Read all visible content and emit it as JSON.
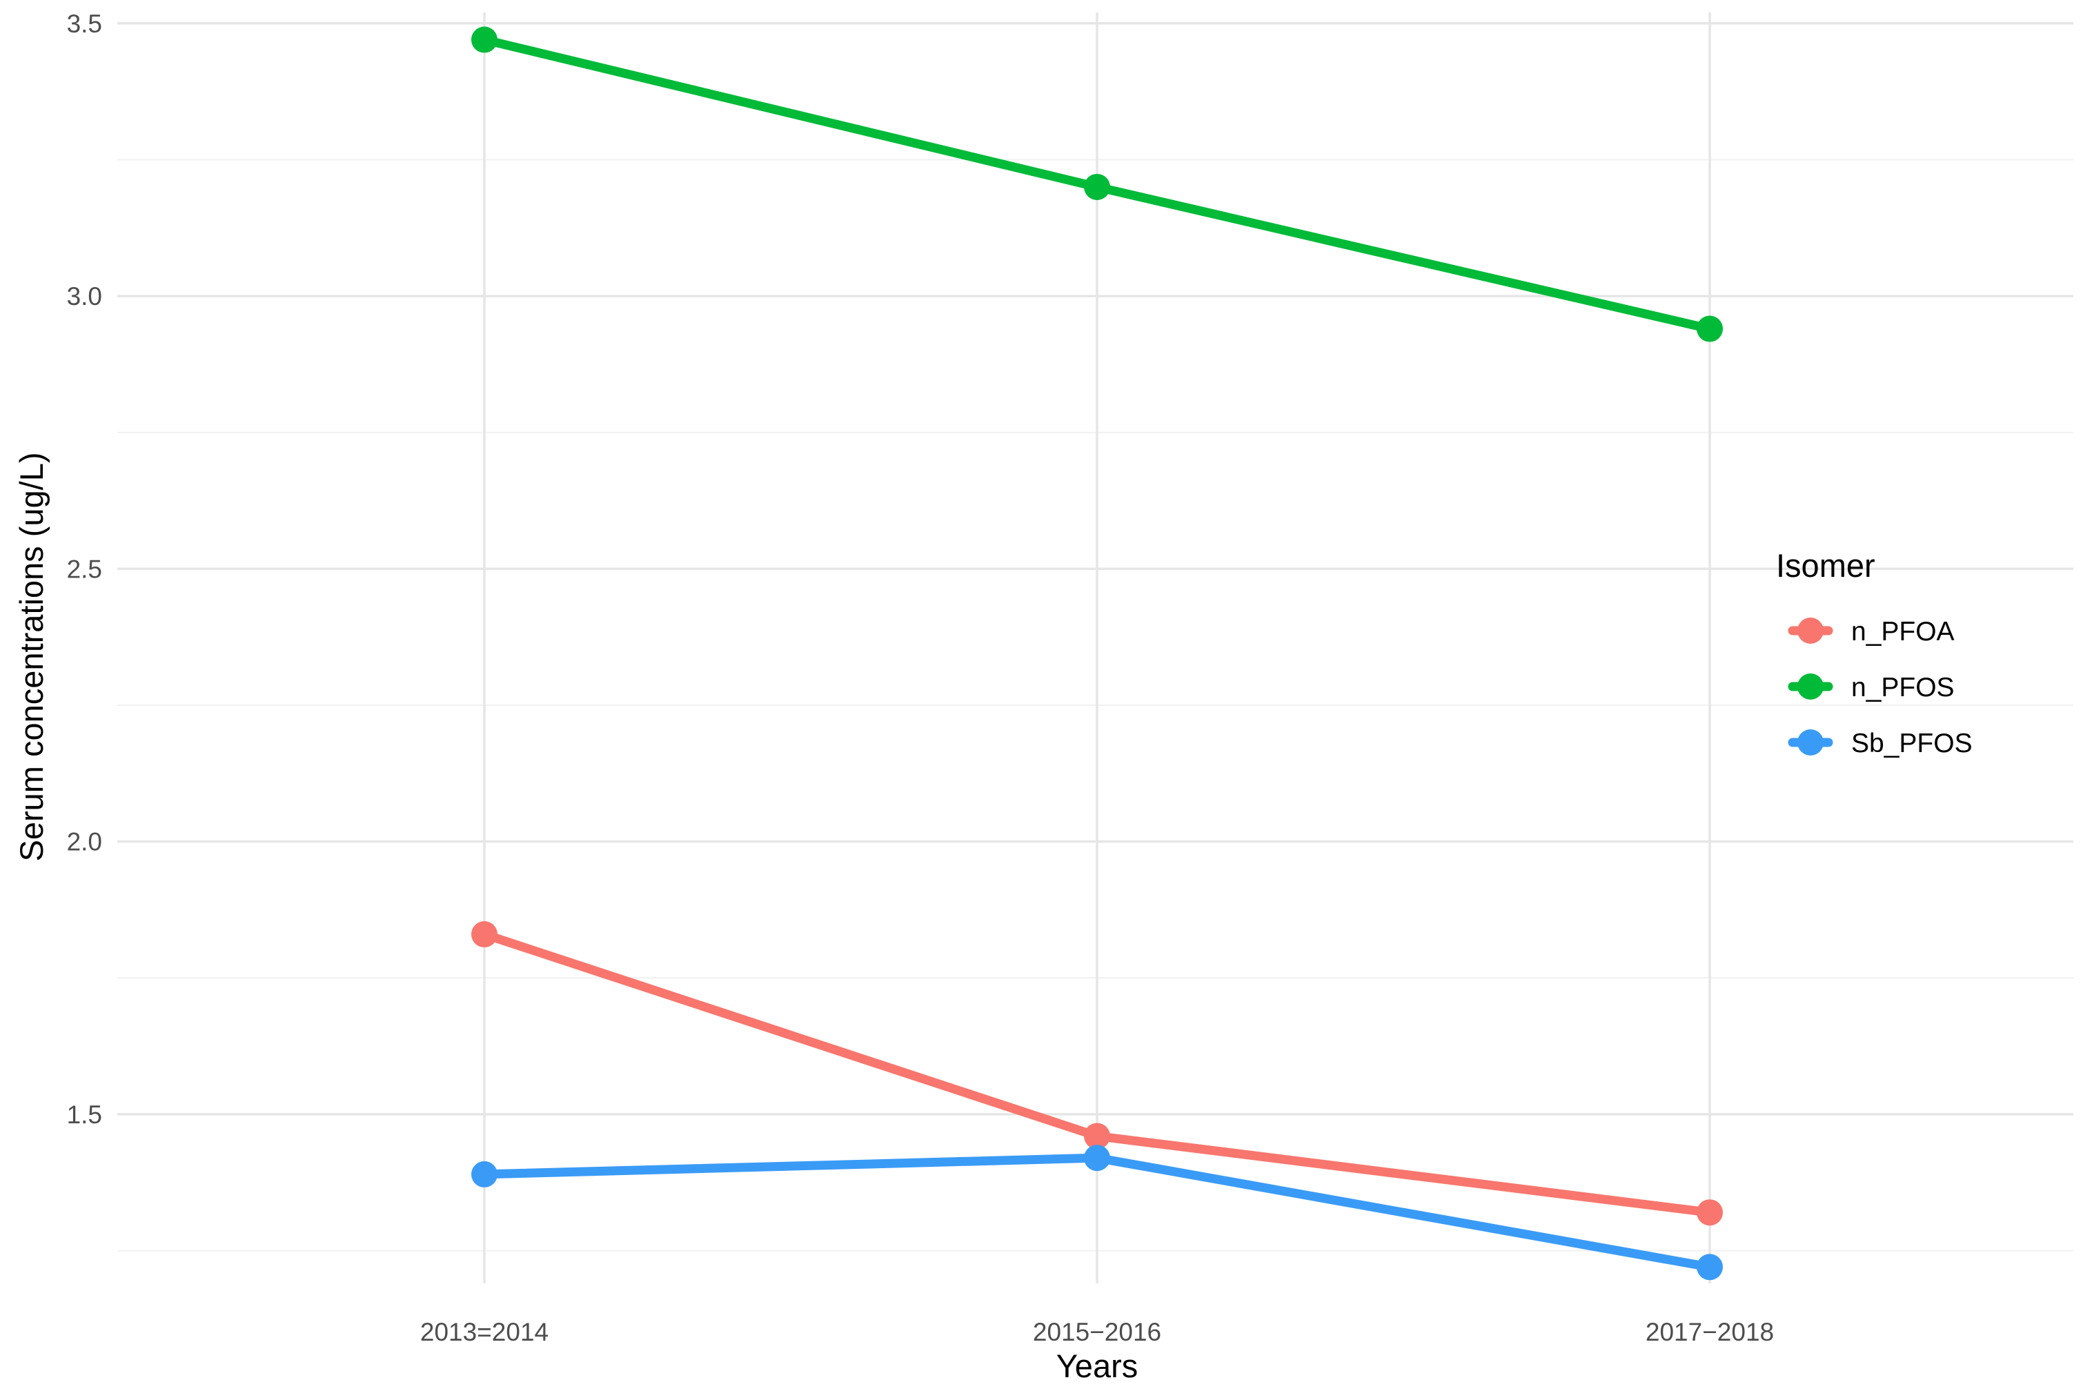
{
  "chart_data": {
    "type": "line",
    "xlabel": "Years",
    "ylabel": "Serum concentrations (ug/L)",
    "categories": [
      "2013=2014",
      "2015−2016",
      "2017−2018"
    ],
    "ylim": [
      1.19,
      3.52
    ],
    "yticks": [
      1.5,
      2.0,
      2.5,
      3.0,
      3.5
    ],
    "ytick_labels": [
      "1.5",
      "2.0",
      "2.5",
      "3.0",
      "3.5"
    ],
    "grid": true,
    "legend": {
      "title": "Isomer",
      "placement": "right"
    },
    "series": [
      {
        "name": "n_PFOA",
        "color": "#F8766D",
        "values": [
          1.83,
          1.46,
          1.32
        ]
      },
      {
        "name": "n_PFOS",
        "color": "#00BA38",
        "values": [
          3.47,
          3.2,
          2.94
        ]
      },
      {
        "name": "Sb_PFOS",
        "color": "#3A9BF7",
        "values": [
          1.39,
          1.42,
          1.22
        ]
      }
    ]
  }
}
